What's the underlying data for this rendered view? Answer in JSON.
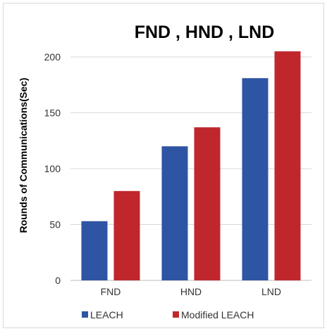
{
  "chart_data": {
    "type": "bar",
    "title": "FND , HND , LND",
    "xlabel": "",
    "ylabel": "Rounds of Communications(Sec)",
    "categories": [
      "FND",
      "HND",
      "LND"
    ],
    "series": [
      {
        "name": "LEACH",
        "values": [
          53,
          120,
          181
        ],
        "color": "#2e55a3"
      },
      {
        "name": "Modified LEACH",
        "values": [
          80,
          137,
          205
        ],
        "color": "#c0272d"
      }
    ],
    "ylim": [
      0,
      200
    ],
    "yticks": [
      0,
      50,
      100,
      150,
      200
    ],
    "grid": true,
    "legend_position": "bottom"
  }
}
